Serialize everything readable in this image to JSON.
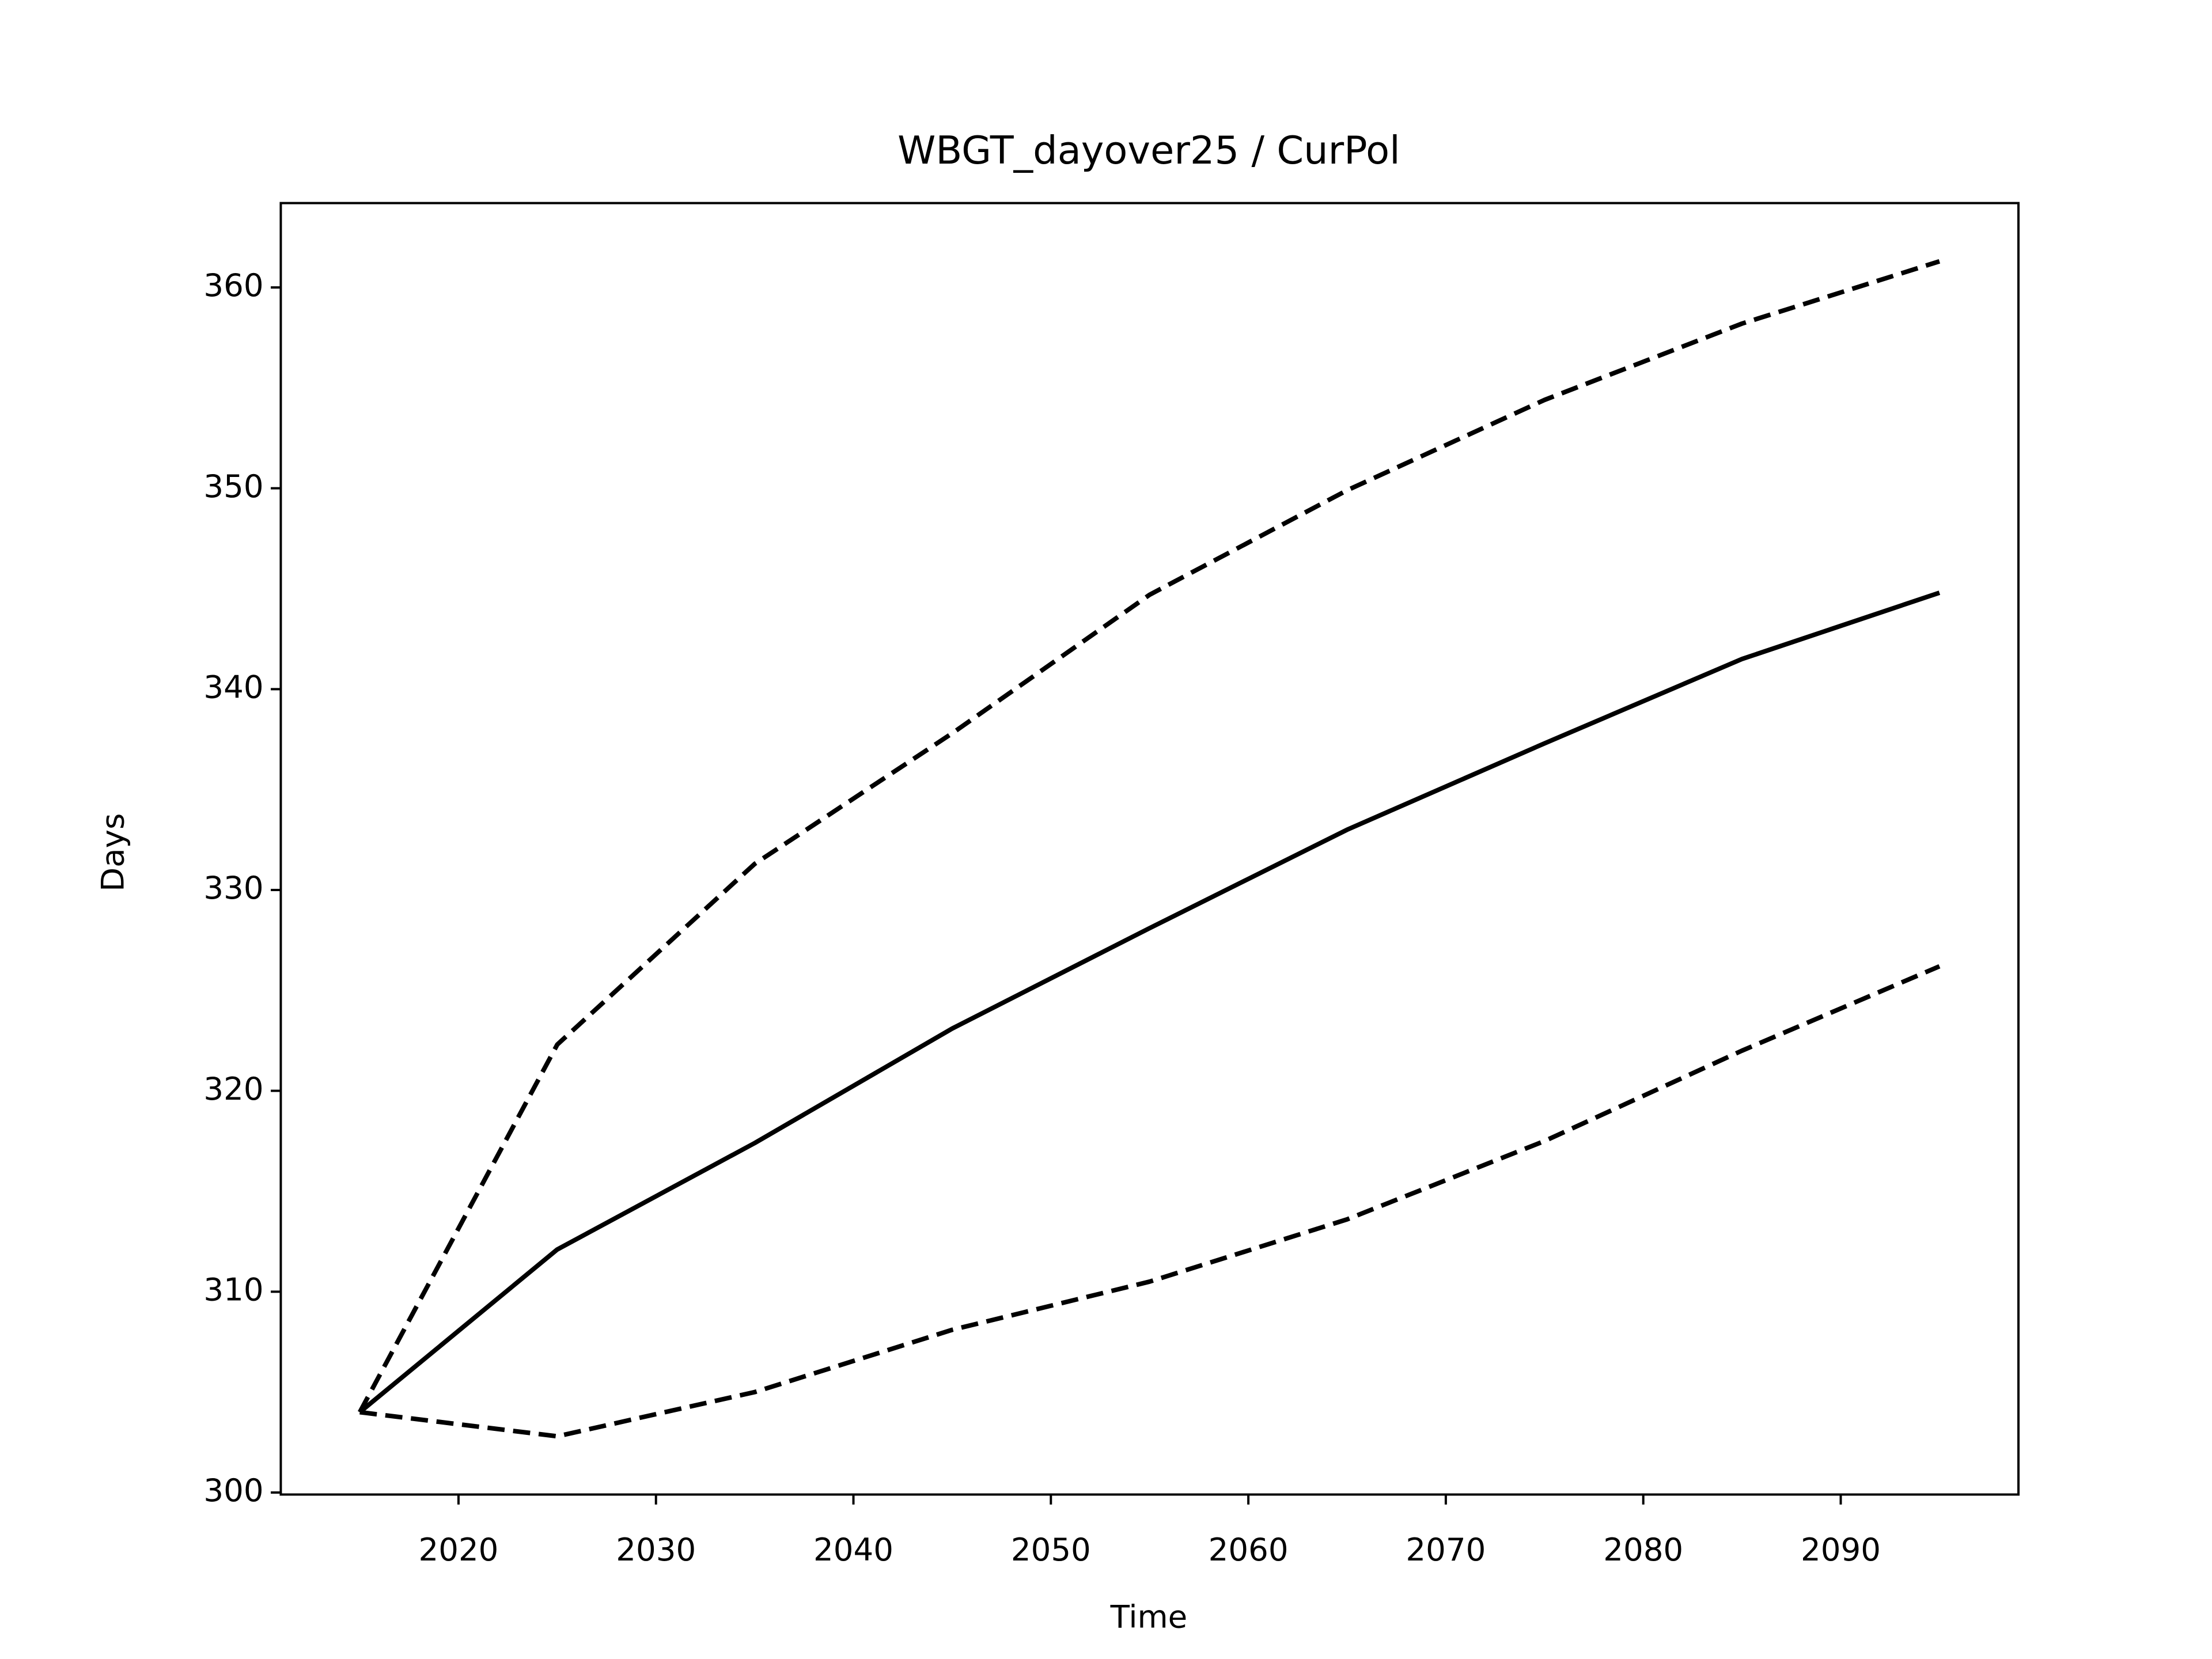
{
  "chart_data": {
    "type": "line",
    "title": "WBGT_dayover25 / CurPol",
    "xlabel": "Time",
    "ylabel": "Days",
    "x": [
      2015,
      2025,
      2035,
      2045,
      2055,
      2065,
      2075,
      2085,
      2095
    ],
    "series": [
      {
        "color": "#000000",
        "dashed": false,
        "values": [
          304,
          312.1,
          317.4,
          323.1,
          328.1,
          333.0,
          337.3,
          341.5,
          344.8
        ]
      },
      {
        "color": "#000000",
        "dashed": true,
        "values": [
          304,
          322.3,
          331.3,
          337.8,
          344.7,
          349.9,
          354.4,
          358.2,
          361.3
        ]
      },
      {
        "color": "#000000",
        "dashed": true,
        "values": [
          304,
          302.8,
          305.0,
          308.1,
          310.5,
          313.6,
          317.5,
          322.0,
          326.2
        ]
      }
    ],
    "xlim": [
      2011,
      2099
    ],
    "xticks": [
      2020,
      2030,
      2040,
      2050,
      2060,
      2070,
      2080,
      2090
    ],
    "ylim": [
      299.9,
      364.2
    ],
    "yticks": [
      300,
      310,
      320,
      330,
      340,
      350,
      360
    ],
    "grid": false
  }
}
